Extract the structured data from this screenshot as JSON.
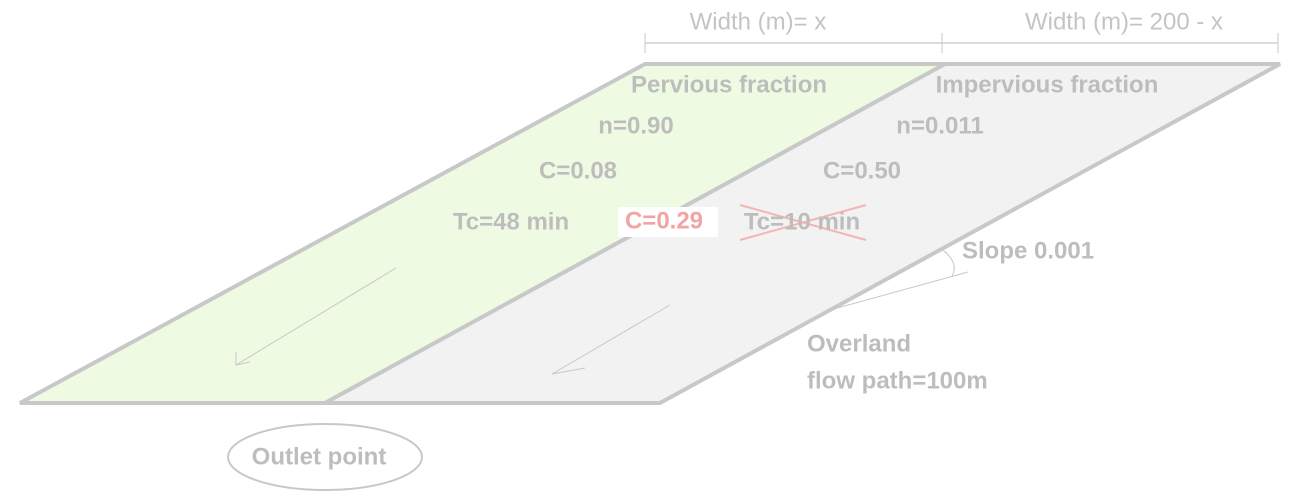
{
  "dimensions": {
    "width_left": "Width (m)= x",
    "width_right": "Width (m)= 200 - x"
  },
  "pervious": {
    "title": "Pervious fraction",
    "n": "n=0.90",
    "c": "C=0.08",
    "tc": "Tc=48 min"
  },
  "combined": {
    "c": "C=0.29"
  },
  "impervious": {
    "title": "Impervious fraction",
    "n": "n=0.011",
    "c": "C=0.50",
    "tc_crossed": "Tc=10 min"
  },
  "slope": "Slope 0.001",
  "flow_path": {
    "line1": "Overland",
    "line2": "flow path=100m"
  },
  "outlet": "Outlet point"
}
